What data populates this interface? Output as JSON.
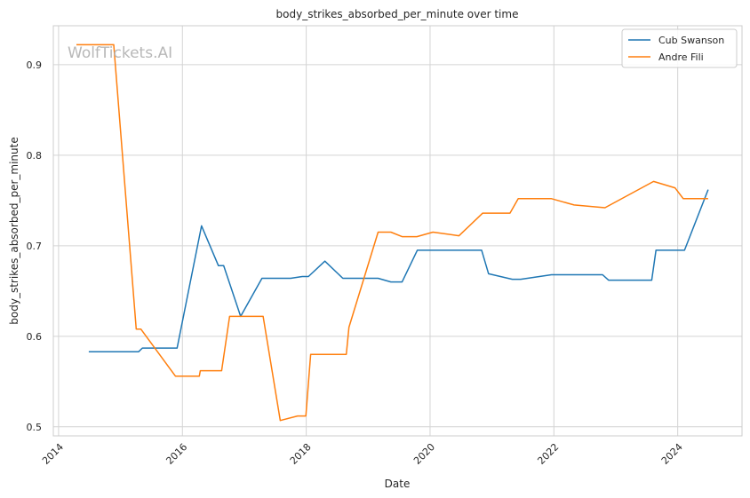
{
  "watermark": "WolfTickets.AI",
  "chart_data": {
    "type": "line",
    "title": "body_strikes_absorbed_per_minute over time",
    "xlabel": "Date",
    "ylabel": "body_strikes_absorbed_per_minute",
    "xlim": [
      "2013-12-01",
      "2025-01-15"
    ],
    "ylim": [
      0.49,
      0.943
    ],
    "x_ticks": [
      "2014",
      "2016",
      "2018",
      "2020",
      "2022",
      "2024"
    ],
    "y_ticks": [
      "0.5",
      "0.6",
      "0.7",
      "0.8",
      "0.9"
    ],
    "grid": true,
    "legend_position": "top-right",
    "series": [
      {
        "name": "Cub Swanson",
        "color": "#1f77b4",
        "points": [
          [
            "2014-06-28",
            0.583
          ],
          [
            "2015-04-18",
            0.583
          ],
          [
            "2015-05-10",
            0.587
          ],
          [
            "2015-12-01",
            0.587
          ],
          [
            "2016-04-23",
            0.722
          ],
          [
            "2016-08-01",
            0.678
          ],
          [
            "2016-09-01",
            0.678
          ],
          [
            "2016-12-10",
            0.622
          ],
          [
            "2017-04-15",
            0.664
          ],
          [
            "2017-10-01",
            0.664
          ],
          [
            "2017-12-09",
            0.666
          ],
          [
            "2018-01-14",
            0.666
          ],
          [
            "2018-04-21",
            0.683
          ],
          [
            "2018-08-05",
            0.664
          ],
          [
            "2019-03-01",
            0.664
          ],
          [
            "2019-05-15",
            0.66
          ],
          [
            "2019-07-20",
            0.66
          ],
          [
            "2019-10-18",
            0.695
          ],
          [
            "2020-11-01",
            0.695
          ],
          [
            "2020-12-12",
            0.669
          ],
          [
            "2021-05-01",
            0.663
          ],
          [
            "2021-06-19",
            0.663
          ],
          [
            "2021-12-18",
            0.668
          ],
          [
            "2022-10-15",
            0.668
          ],
          [
            "2022-11-19",
            0.662
          ],
          [
            "2023-08-01",
            0.662
          ],
          [
            "2023-08-26",
            0.695
          ],
          [
            "2024-02-10",
            0.695
          ],
          [
            "2024-06-29",
            0.762
          ]
        ]
      },
      {
        "name": "Andre Fili",
        "color": "#ff7f0e",
        "points": [
          [
            "2014-04-16",
            0.922
          ],
          [
            "2014-11-22",
            0.922
          ],
          [
            "2015-04-04",
            0.608
          ],
          [
            "2015-05-01",
            0.608
          ],
          [
            "2015-11-21",
            0.556
          ],
          [
            "2016-04-10",
            0.556
          ],
          [
            "2016-04-16",
            0.562
          ],
          [
            "2016-08-20",
            0.562
          ],
          [
            "2016-10-06",
            0.622
          ],
          [
            "2017-04-22",
            0.622
          ],
          [
            "2017-08-01",
            0.507
          ],
          [
            "2017-11-11",
            0.512
          ],
          [
            "2017-12-30",
            0.512
          ],
          [
            "2018-01-27",
            0.58
          ],
          [
            "2018-08-25",
            0.58
          ],
          [
            "2018-09-10",
            0.61
          ],
          [
            "2019-03-01",
            0.715
          ],
          [
            "2019-05-15",
            0.715
          ],
          [
            "2019-07-20",
            0.71
          ],
          [
            "2019-10-15",
            0.71
          ],
          [
            "2020-01-18",
            0.715
          ],
          [
            "2020-06-20",
            0.711
          ],
          [
            "2020-11-07",
            0.736
          ],
          [
            "2021-04-17",
            0.736
          ],
          [
            "2021-06-05",
            0.752
          ],
          [
            "2021-12-18",
            0.752
          ],
          [
            "2022-04-30",
            0.745
          ],
          [
            "2022-10-29",
            0.742
          ],
          [
            "2023-08-12",
            0.771
          ],
          [
            "2023-12-16",
            0.764
          ],
          [
            "2024-02-03",
            0.752
          ],
          [
            "2024-06-29",
            0.752
          ]
        ]
      }
    ]
  }
}
